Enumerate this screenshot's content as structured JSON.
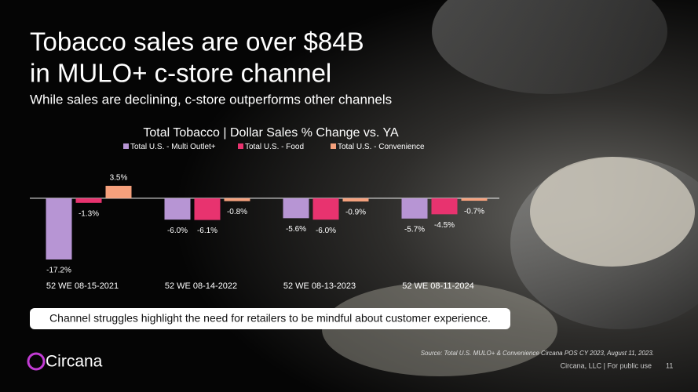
{
  "slide": {
    "headline": [
      "Tobacco sales are over $84B",
      "in MULO+ c-store channel"
    ],
    "subheadline": "While sales are declining, c-store outperforms other channels",
    "callout": "Channel struggles highlight the need for retailers to be mindful about customer experience.",
    "source": "Source: Total U.S. MULO+ & Convenience Circana POS CY 2023, August 11, 2023.",
    "footer": "Circana, LLC | For public use",
    "page_number": "11",
    "logo": "Circana"
  },
  "chart_data": {
    "type": "bar",
    "title": "Total Tobacco  |  Dollar Sales % Change vs. YA",
    "categories": [
      "52 WE 08-15-2021",
      "52 WE 08-14-2022",
      "52 WE 08-13-2023",
      "52 WE 08-11-2024"
    ],
    "series": [
      {
        "name": "Total U.S. - Multi Outlet+",
        "color": "#b795d4",
        "values": [
          -17.2,
          -6.0,
          -5.6,
          -5.7
        ],
        "value_labels": [
          "-17.2%",
          "-6.0%",
          "-5.6%",
          "-5.7%"
        ]
      },
      {
        "name": "Total U.S. - Food",
        "color": "#e8336f",
        "values": [
          -1.3,
          -6.1,
          -6.0,
          -4.5
        ],
        "value_labels": [
          "-1.3%",
          "-6.1%",
          "-6.0%",
          "-4.5%"
        ]
      },
      {
        "name": "Total U.S. - Convenience",
        "color": "#f5a07c",
        "values": [
          3.5,
          -0.8,
          -0.9,
          -0.7
        ],
        "value_labels": [
          "3.5%",
          "-0.8%",
          "-0.9%",
          "-0.7%"
        ]
      }
    ],
    "legend": "top"
  }
}
